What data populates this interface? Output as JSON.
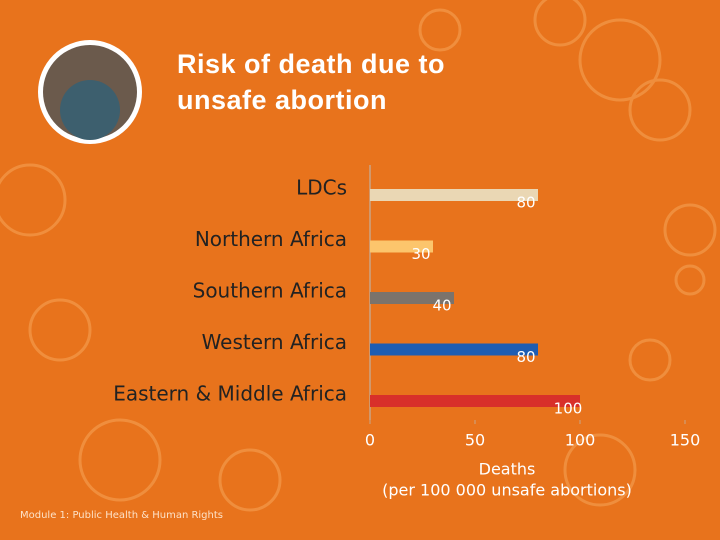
{
  "chart_data": {
    "type": "barh",
    "title": "Risk of death due to unsafe abortion",
    "categories": [
      "LDCs",
      "Northern Africa",
      "Southern Africa",
      "Western Africa",
      "Eastern & Middle Africa"
    ],
    "values": [
      80,
      30,
      40,
      80,
      100
    ],
    "colors": [
      "#ead7b4",
      "#fcc56c",
      "#7b736c",
      "#1f5db2",
      "#d8302a"
    ],
    "xlim": [
      0,
      150
    ],
    "xticks": [
      0,
      50,
      100,
      150
    ],
    "xlabel": [
      "Deaths",
      "(per 100 000 unsafe abortions)"
    ],
    "footer": "Module 1: Public Health & Human Rights"
  }
}
